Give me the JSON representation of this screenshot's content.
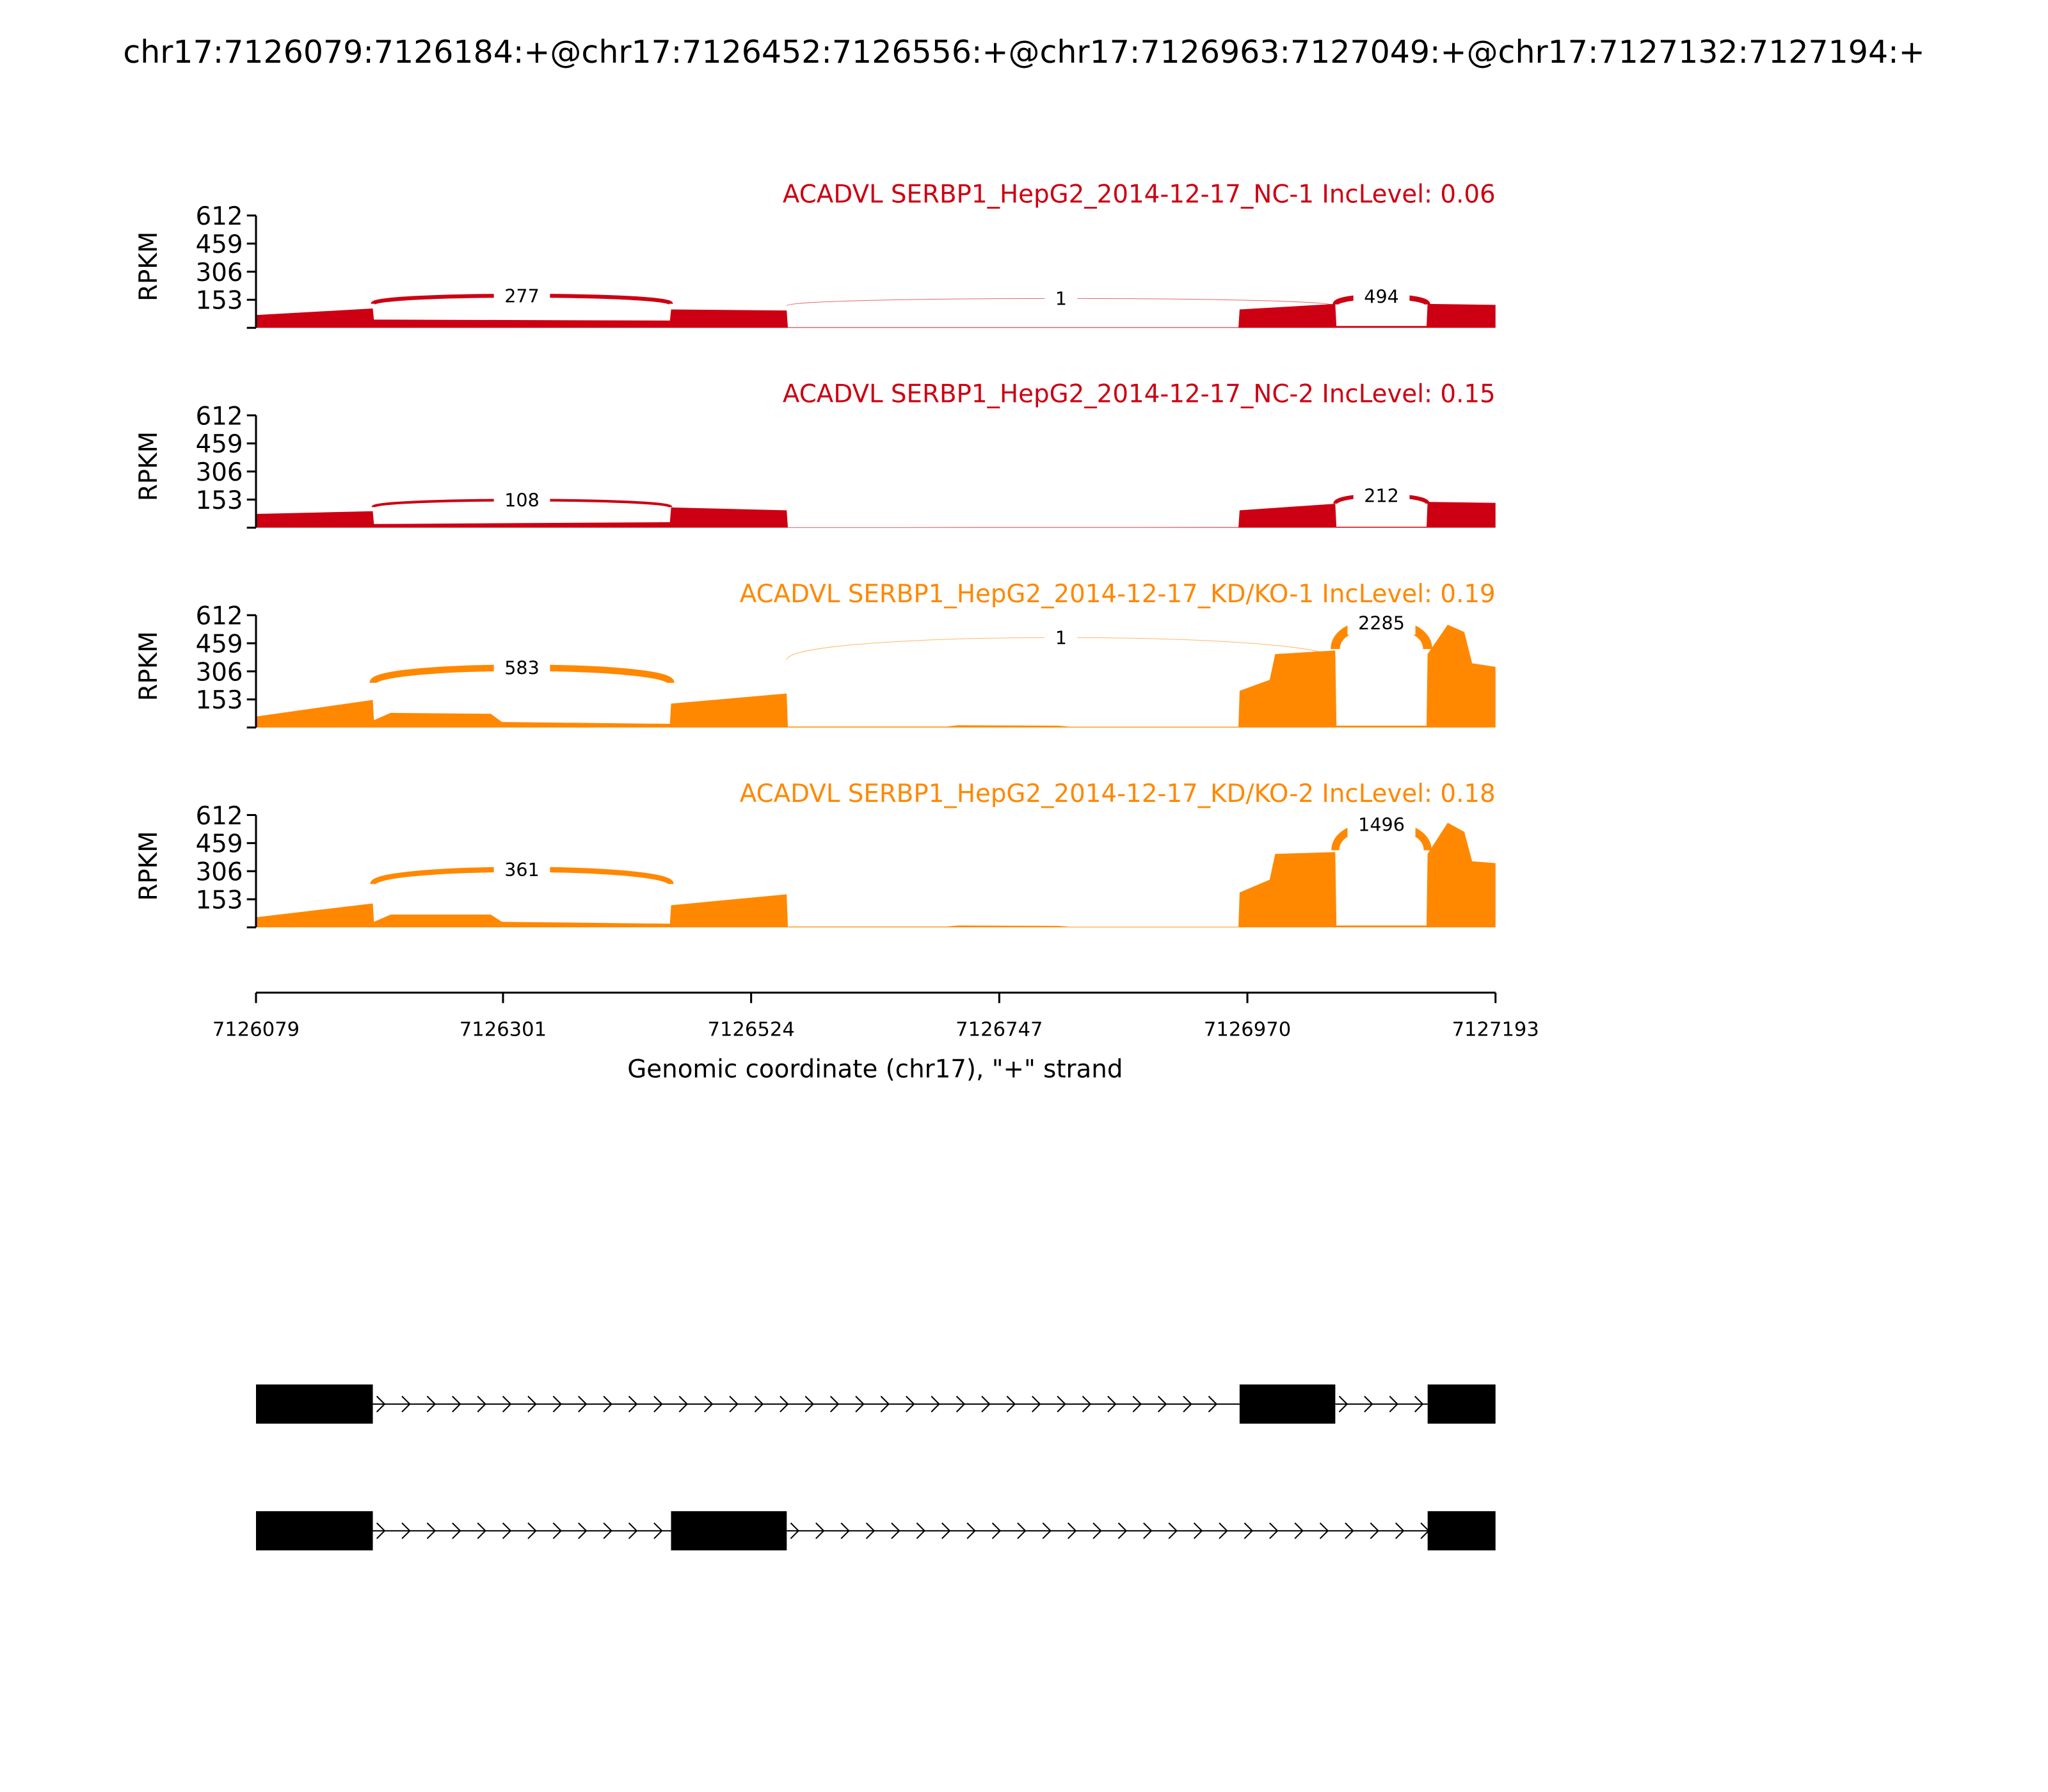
{
  "chart_data": {
    "type": "area",
    "title": "chr17:7126079:7126184:+@chr17:7126452:7126556:+@chr17:7126963:7127049:+@chr17:7127132:7127194:+",
    "xlabel": "Genomic coordinate (chr17), \"+\" strand",
    "ylabel": "RPKM",
    "xlim": [
      7126079,
      7127193
    ],
    "ylim": [
      0,
      612
    ],
    "yticks": [
      "612",
      "459",
      "306",
      "153"
    ],
    "xticks": [
      "7126079",
      "7126301",
      "7126524",
      "7126747",
      "7126970",
      "7127193"
    ],
    "colors": {
      "NC": "#cc0012",
      "KD": "#ff8800"
    },
    "samples": [
      {
        "title": "ACADVL SERBP1_HepG2_2014-12-17_NC-1 IncLevel: 0.06",
        "group": "NC",
        "coverage": [
          [
            7126079,
            70
          ],
          [
            7126184,
            105
          ],
          [
            7126185,
            45
          ],
          [
            7126451,
            40
          ],
          [
            7126452,
            100
          ],
          [
            7126556,
            95
          ],
          [
            7126557,
            3
          ],
          [
            7126962,
            3
          ],
          [
            7126963,
            100
          ],
          [
            7127049,
            130
          ],
          [
            7127050,
            10
          ],
          [
            7127131,
            10
          ],
          [
            7127132,
            130
          ],
          [
            7127193,
            125
          ]
        ],
        "junctions": [
          {
            "from": 7126184,
            "to": 7126452,
            "count": "277",
            "peak": 175,
            "w": 3
          },
          {
            "from": 7126556,
            "to": 7127049,
            "count": "1",
            "peak": 160,
            "w": 0.5
          },
          {
            "from": 7127049,
            "to": 7127132,
            "count": "494",
            "peak": 170,
            "w": 4
          }
        ]
      },
      {
        "title": "ACADVL SERBP1_HepG2_2014-12-17_NC-2 IncLevel: 0.15",
        "group": "NC",
        "coverage": [
          [
            7126079,
            75
          ],
          [
            7126184,
            90
          ],
          [
            7126185,
            20
          ],
          [
            7126451,
            30
          ],
          [
            7126452,
            110
          ],
          [
            7126556,
            95
          ],
          [
            7126557,
            2
          ],
          [
            7126962,
            3
          ],
          [
            7126963,
            95
          ],
          [
            7127049,
            130
          ],
          [
            7127050,
            5
          ],
          [
            7127131,
            5
          ],
          [
            7127132,
            140
          ],
          [
            7127193,
            135
          ]
        ],
        "junctions": [
          {
            "from": 7126184,
            "to": 7126452,
            "count": "108",
            "peak": 150,
            "w": 2
          },
          {
            "from": 7127049,
            "to": 7127132,
            "count": "212",
            "peak": 175,
            "w": 3
          }
        ]
      },
      {
        "title": "ACADVL SERBP1_HepG2_2014-12-17_KD/KO-1 IncLevel: 0.19",
        "group": "KD",
        "coverage": [
          [
            7126079,
            60
          ],
          [
            7126184,
            150
          ],
          [
            7126185,
            40
          ],
          [
            7126200,
            80
          ],
          [
            7126290,
            75
          ],
          [
            7126300,
            30
          ],
          [
            7126451,
            20
          ],
          [
            7126452,
            130
          ],
          [
            7126556,
            185
          ],
          [
            7126557,
            5
          ],
          [
            7126700,
            5
          ],
          [
            7126710,
            12
          ],
          [
            7126800,
            10
          ],
          [
            7126810,
            4
          ],
          [
            7126962,
            4
          ],
          [
            7126963,
            200
          ],
          [
            7126990,
            260
          ],
          [
            7126995,
            400
          ],
          [
            7127049,
            420
          ],
          [
            7127050,
            10
          ],
          [
            7127131,
            10
          ],
          [
            7127132,
            400
          ],
          [
            7127150,
            560
          ],
          [
            7127165,
            520
          ],
          [
            7127172,
            350
          ],
          [
            7127193,
            330
          ]
        ],
        "junctions": [
          {
            "from": 7126184,
            "to": 7126452,
            "count": "583",
            "peak": 325,
            "w": 5
          },
          {
            "from": 7126556,
            "to": 7127049,
            "count": "1",
            "peak": 490,
            "w": 0.5
          },
          {
            "from": 7127049,
            "to": 7127132,
            "count": "2285",
            "peak": 570,
            "w": 7
          }
        ]
      },
      {
        "title": "ACADVL SERBP1_HepG2_2014-12-17_KD/KO-2 IncLevel: 0.18",
        "group": "KD",
        "coverage": [
          [
            7126079,
            55
          ],
          [
            7126184,
            130
          ],
          [
            7126185,
            30
          ],
          [
            7126200,
            70
          ],
          [
            7126290,
            70
          ],
          [
            7126300,
            30
          ],
          [
            7126451,
            20
          ],
          [
            7126452,
            120
          ],
          [
            7126556,
            180
          ],
          [
            7126557,
            4
          ],
          [
            7126700,
            4
          ],
          [
            7126710,
            10
          ],
          [
            7126800,
            8
          ],
          [
            7126810,
            3
          ],
          [
            7126962,
            3
          ],
          [
            7126963,
            190
          ],
          [
            7126990,
            260
          ],
          [
            7126995,
            400
          ],
          [
            7127049,
            410
          ],
          [
            7127050,
            10
          ],
          [
            7127131,
            10
          ],
          [
            7127132,
            400
          ],
          [
            7127150,
            570
          ],
          [
            7127165,
            520
          ],
          [
            7127172,
            360
          ],
          [
            7127193,
            350
          ]
        ],
        "junctions": [
          {
            "from": 7126184,
            "to": 7126452,
            "count": "361",
            "peak": 315,
            "w": 4
          },
          {
            "from": 7127049,
            "to": 7127132,
            "count": "1496",
            "peak": 560,
            "w": 6
          }
        ]
      }
    ],
    "transcripts": [
      {
        "exons": [
          [
            7126079,
            7126184
          ],
          [
            7126963,
            7127049
          ],
          [
            7127132,
            7127194
          ]
        ]
      },
      {
        "exons": [
          [
            7126079,
            7126184
          ],
          [
            7126452,
            7126556
          ],
          [
            7127132,
            7127194
          ]
        ]
      }
    ]
  }
}
